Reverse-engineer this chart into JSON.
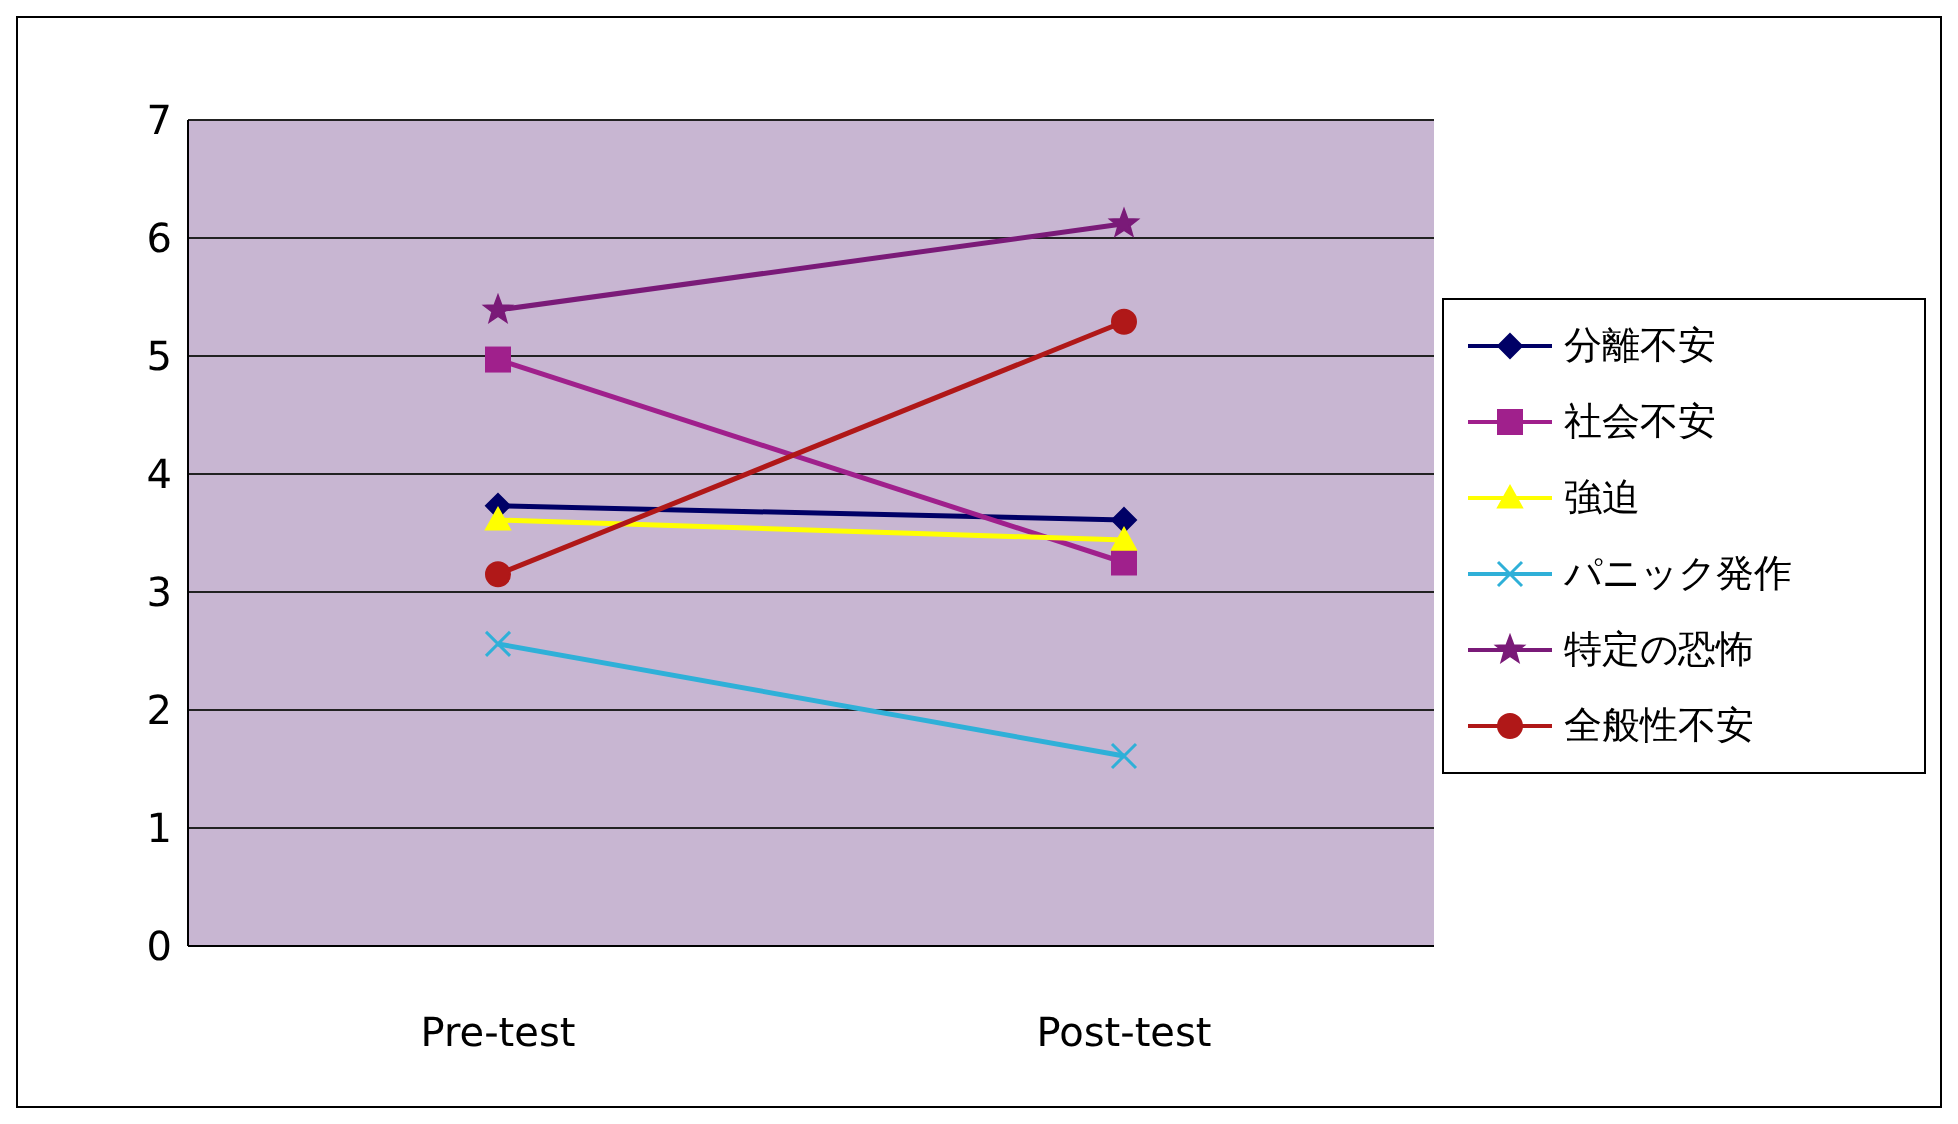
{
  "chart_data": {
    "type": "line",
    "categories": [
      "Pre-test",
      "Post-test"
    ],
    "ylim": [
      0,
      7
    ],
    "yticks": [
      0,
      1,
      2,
      3,
      4,
      5,
      6,
      7
    ],
    "grid": "y",
    "legend": "right",
    "series": [
      {
        "name": "分離不安",
        "color": "#000066",
        "marker": "diamond",
        "values": [
          3.73,
          3.61
        ]
      },
      {
        "name": "社会不安",
        "color": "#a0208c",
        "marker": "square",
        "values": [
          4.97,
          3.25
        ]
      },
      {
        "name": "強迫",
        "color": "#ffff00",
        "marker": "triangle",
        "values": [
          3.61,
          3.44
        ]
      },
      {
        "name": "パニック発作",
        "color": "#2fb0d8",
        "marker": "cross",
        "values": [
          2.56,
          1.61
        ]
      },
      {
        "name": "特定の恐怖",
        "color": "#7a1a78",
        "marker": "star",
        "values": [
          5.39,
          6.12
        ]
      },
      {
        "name": "全般性不安",
        "color": "#b01818",
        "marker": "circle",
        "values": [
          3.15,
          5.29
        ]
      }
    ]
  }
}
